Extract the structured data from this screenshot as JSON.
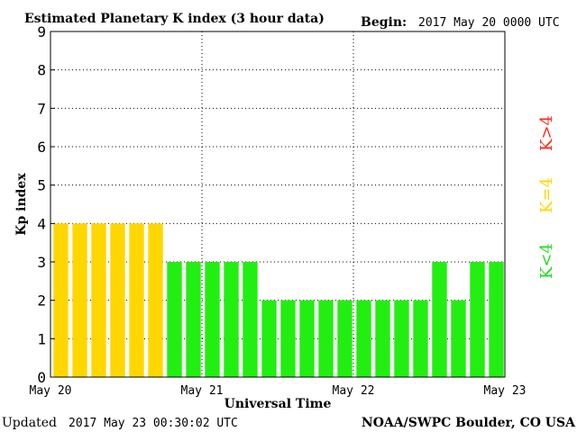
{
  "header": {
    "title": "Estimated Planetary K index (3 hour data)",
    "begin_label": "Begin:",
    "begin_value": "2017 May 20 0000 UTC"
  },
  "footer": {
    "updated_label": "Updated",
    "updated_value": "2017 May 23 00:30:02 UTC",
    "source": "NOAA/SWPC Boulder, CO USA"
  },
  "legend": [
    {
      "label": "K>4",
      "color": "#ff2a1a"
    },
    {
      "label": "K=4",
      "color": "#ffd700"
    },
    {
      "label": "K<4",
      "color": "#22dd22"
    }
  ],
  "chart_data": {
    "type": "bar",
    "title": "Estimated Planetary K index (3 hour data)",
    "xlabel": "Universal Time",
    "ylabel": "Kp index",
    "ylim": [
      0,
      9
    ],
    "yticks": [
      "0",
      "1",
      "2",
      "3",
      "4",
      "5",
      "6",
      "7",
      "8",
      "9"
    ],
    "xticks": [
      "May 20",
      "May 21",
      "May 22",
      "May 23"
    ],
    "grid": true,
    "values": [
      4,
      4,
      4,
      4,
      4,
      4,
      3,
      3,
      3,
      3,
      3,
      2,
      2,
      2,
      2,
      2,
      2,
      2,
      2,
      2,
      3,
      2,
      3,
      3
    ],
    "colors": {
      "below": "#22ee11",
      "equal": "#ffd700",
      "above": "#ff2a1a"
    }
  }
}
